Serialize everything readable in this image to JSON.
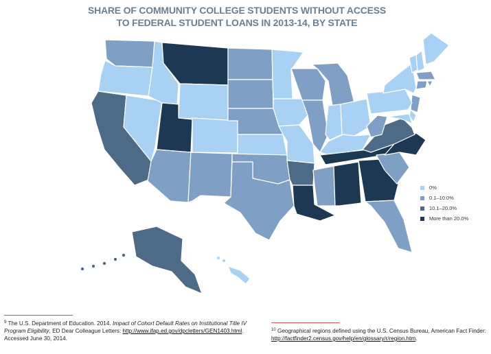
{
  "title": {
    "line1": "SHARE OF COMMUNITY COLLEGE STUDENTS WITHOUT ACCESS",
    "line2": "TO FEDERAL STUDENT LOANS IN 2013-14, BY STATE"
  },
  "legend": [
    {
      "label": "0%",
      "color": "#a9d1f3"
    },
    {
      "label": "0.1–10.0%",
      "color": "#7f9fc4"
    },
    {
      "label": "10.1–20.0%",
      "color": "#4d6a86"
    },
    {
      "label": "More than 20.0%",
      "color": "#1c3853"
    }
  ],
  "map_data": {
    "categories": [
      "0%",
      "0.1–10.0%",
      "10.1–20.0%",
      "More than 20.0%"
    ],
    "states": {
      "WA": 1,
      "OR": 0,
      "CA": 2,
      "NV": 0,
      "ID": 0,
      "MT": 3,
      "WY": 0,
      "UT": 3,
      "AZ": 1,
      "CO": 0,
      "NM": 1,
      "ND": 1,
      "SD": 1,
      "NE": 1,
      "KS": 0,
      "OK": 1,
      "TX": 1,
      "MN": 0,
      "IA": 0,
      "MO": 0,
      "AR": 2,
      "LA": 3,
      "WI": 1,
      "IL": 1,
      "MI": 1,
      "IN": 0,
      "OH": 0,
      "KY": 0,
      "TN": 3,
      "MS": 1,
      "AL": 3,
      "GA": 3,
      "FL": 1,
      "SC": 1,
      "NC": 3,
      "VA": 2,
      "WV": 1,
      "MD": 0,
      "DE": 0,
      "NJ": 1,
      "PA": 0,
      "NY": 0,
      "VT": 0,
      "NH": 0,
      "ME": 0,
      "MA": 1,
      "CT": 1,
      "RI": 1,
      "AK": 2,
      "HI": 0
    }
  },
  "footnotes": {
    "left": {
      "number": "9",
      "text1": "The U.S. Department of Education. 2014. ",
      "italic": "Impact of Cohort Default Rates on Institutional Title IV Program Eligibility",
      "text2": ", ED Dear Colleague Letters: ",
      "link": "http://www.ifap.ed.gov/dpcletters/GEN1403.html",
      "text3": ". Accessed June 30, 2014."
    },
    "right": {
      "number": "10",
      "text1": " Geographical regions defined using the U.S. Census Bureau, American Fact Finder: ",
      "link": "http://factfinder2.census.gov/help/en/glossary/r/region.htm",
      "text2": "."
    }
  }
}
